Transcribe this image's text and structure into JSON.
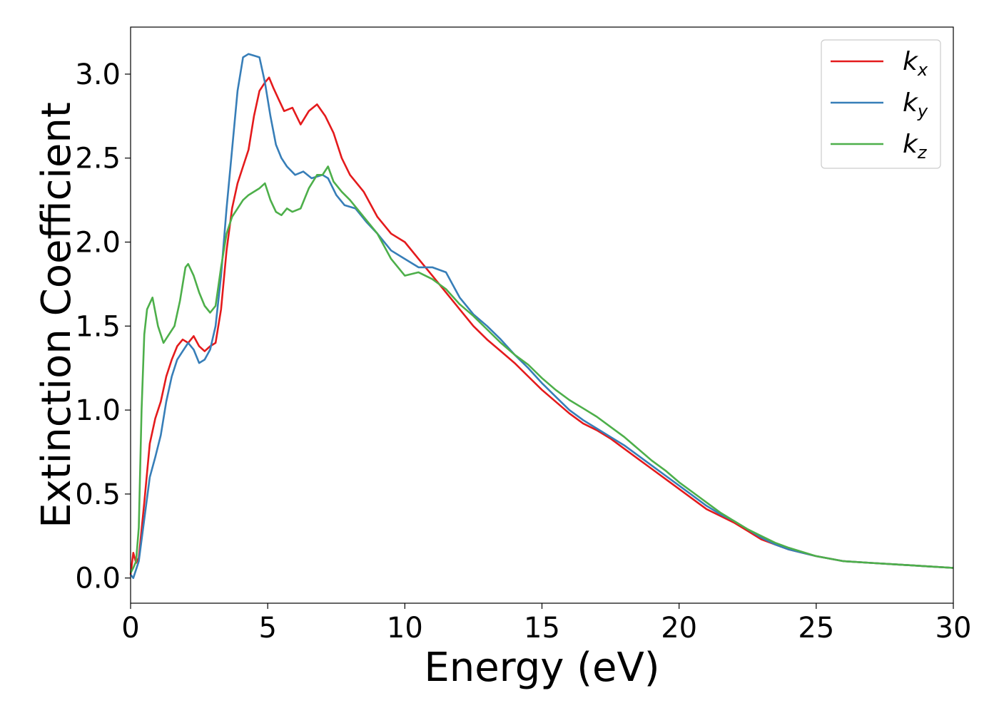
{
  "chart_data": {
    "type": "line",
    "xlabel": "Energy (eV)",
    "ylabel": "Extinction Coefficient",
    "xlim": [
      0,
      30
    ],
    "ylim": [
      -0.15,
      3.28
    ],
    "xticks": [
      0,
      5,
      10,
      15,
      20,
      25,
      30
    ],
    "xtick_labels": [
      "0",
      "5",
      "10",
      "15",
      "20",
      "25",
      "30"
    ],
    "yticks": [
      0.0,
      0.5,
      1.0,
      1.5,
      2.0,
      2.5,
      3.0
    ],
    "ytick_labels": [
      "0.0",
      "0.5",
      "1.0",
      "1.5",
      "2.0",
      "2.5",
      "3.0"
    ],
    "grid": false,
    "legend_position": "top-right",
    "series": [
      {
        "name": "k_x",
        "legend_base": "k",
        "legend_sub": "x",
        "color": "#e41a1c",
        "x": [
          0,
          0.1,
          0.2,
          0.3,
          0.5,
          0.7,
          0.9,
          1.1,
          1.3,
          1.5,
          1.7,
          1.9,
          2.1,
          2.3,
          2.5,
          2.7,
          2.9,
          3.1,
          3.3,
          3.5,
          3.7,
          3.9,
          4.1,
          4.3,
          4.5,
          4.7,
          4.9,
          5.05,
          5.2,
          5.4,
          5.6,
          5.9,
          6.2,
          6.5,
          6.8,
          7.1,
          7.4,
          7.7,
          8.0,
          8.5,
          9.0,
          9.5,
          10.0,
          10.5,
          11.0,
          11.5,
          12.0,
          12.5,
          13.0,
          13.5,
          14.0,
          14.5,
          15.0,
          15.5,
          16.0,
          16.5,
          17.0,
          17.5,
          18.0,
          18.5,
          19.0,
          19.5,
          20.0,
          20.5,
          21.0,
          21.5,
          22.0,
          22.5,
          23.0,
          23.5,
          24.0,
          25.0,
          26.0,
          27.0,
          28.0,
          29.0,
          30.0
        ],
        "y": [
          0.02,
          0.15,
          0.09,
          0.12,
          0.45,
          0.8,
          0.95,
          1.05,
          1.2,
          1.3,
          1.38,
          1.42,
          1.4,
          1.44,
          1.38,
          1.35,
          1.38,
          1.4,
          1.6,
          1.95,
          2.2,
          2.35,
          2.45,
          2.55,
          2.75,
          2.9,
          2.95,
          2.98,
          2.92,
          2.85,
          2.78,
          2.8,
          2.7,
          2.78,
          2.82,
          2.75,
          2.65,
          2.5,
          2.4,
          2.3,
          2.15,
          2.05,
          2.0,
          1.9,
          1.8,
          1.7,
          1.6,
          1.5,
          1.42,
          1.35,
          1.28,
          1.2,
          1.12,
          1.05,
          0.98,
          0.92,
          0.88,
          0.83,
          0.77,
          0.71,
          0.65,
          0.59,
          0.53,
          0.47,
          0.41,
          0.37,
          0.33,
          0.28,
          0.23,
          0.2,
          0.17,
          0.13,
          0.1,
          0.09,
          0.08,
          0.07,
          0.06
        ]
      },
      {
        "name": "k_y",
        "legend_base": "k",
        "legend_sub": "y",
        "color": "#377eb8",
        "x": [
          0,
          0.1,
          0.2,
          0.3,
          0.5,
          0.7,
          0.9,
          1.1,
          1.3,
          1.5,
          1.7,
          1.9,
          2.1,
          2.3,
          2.5,
          2.7,
          2.9,
          3.1,
          3.3,
          3.5,
          3.7,
          3.9,
          4.1,
          4.3,
          4.5,
          4.7,
          4.9,
          5.1,
          5.3,
          5.5,
          5.7,
          6.0,
          6.3,
          6.6,
          7.0,
          7.2,
          7.5,
          7.8,
          8.2,
          8.6,
          9.0,
          9.5,
          10.0,
          10.5,
          11.0,
          11.5,
          12.0,
          12.5,
          13.0,
          13.5,
          14.0,
          14.5,
          15.0,
          15.5,
          16.0,
          16.5,
          17.0,
          17.5,
          18.0,
          18.5,
          19.0,
          19.5,
          20.0,
          20.5,
          21.0,
          21.5,
          22.0,
          22.5,
          23.0,
          23.5,
          24.0,
          25.0,
          26.0,
          27.0,
          28.0,
          29.0,
          30.0
        ],
        "y": [
          0.02,
          0.0,
          0.05,
          0.1,
          0.35,
          0.6,
          0.72,
          0.85,
          1.05,
          1.2,
          1.3,
          1.35,
          1.4,
          1.36,
          1.28,
          1.3,
          1.36,
          1.5,
          1.8,
          2.2,
          2.55,
          2.9,
          3.1,
          3.12,
          3.11,
          3.1,
          2.95,
          2.75,
          2.58,
          2.5,
          2.45,
          2.4,
          2.42,
          2.38,
          2.4,
          2.38,
          2.28,
          2.22,
          2.2,
          2.12,
          2.05,
          1.95,
          1.9,
          1.85,
          1.85,
          1.82,
          1.67,
          1.57,
          1.5,
          1.42,
          1.33,
          1.25,
          1.16,
          1.08,
          1.0,
          0.94,
          0.89,
          0.84,
          0.79,
          0.73,
          0.67,
          0.61,
          0.55,
          0.49,
          0.43,
          0.38,
          0.34,
          0.29,
          0.24,
          0.2,
          0.17,
          0.13,
          0.1,
          0.09,
          0.08,
          0.07,
          0.06
        ]
      },
      {
        "name": "k_z",
        "legend_base": "k",
        "legend_sub": "z",
        "color": "#4daf4a",
        "x": [
          0,
          0.1,
          0.2,
          0.3,
          0.4,
          0.5,
          0.6,
          0.8,
          1.0,
          1.2,
          1.4,
          1.6,
          1.8,
          2.0,
          2.1,
          2.3,
          2.5,
          2.7,
          2.9,
          3.1,
          3.3,
          3.5,
          3.7,
          3.9,
          4.1,
          4.3,
          4.5,
          4.7,
          4.9,
          5.1,
          5.3,
          5.5,
          5.7,
          5.9,
          6.2,
          6.5,
          6.8,
          7.0,
          7.2,
          7.4,
          7.7,
          8.0,
          8.5,
          9.0,
          9.5,
          10.0,
          10.5,
          11.0,
          11.5,
          12.0,
          12.5,
          13.0,
          13.5,
          14.0,
          14.5,
          15.0,
          15.5,
          16.0,
          16.5,
          17.0,
          17.5,
          18.0,
          18.5,
          19.0,
          19.5,
          20.0,
          20.5,
          21.0,
          21.5,
          22.0,
          22.5,
          23.0,
          23.5,
          24.0,
          25.0,
          26.0,
          27.0,
          28.0,
          29.0,
          30.0
        ],
        "y": [
          0.03,
          0.06,
          0.1,
          0.3,
          1.0,
          1.45,
          1.6,
          1.67,
          1.5,
          1.4,
          1.45,
          1.5,
          1.65,
          1.85,
          1.87,
          1.8,
          1.7,
          1.62,
          1.58,
          1.62,
          1.85,
          2.05,
          2.15,
          2.2,
          2.25,
          2.28,
          2.3,
          2.32,
          2.35,
          2.25,
          2.18,
          2.16,
          2.2,
          2.18,
          2.2,
          2.32,
          2.4,
          2.4,
          2.45,
          2.36,
          2.3,
          2.25,
          2.15,
          2.05,
          1.9,
          1.8,
          1.82,
          1.78,
          1.72,
          1.63,
          1.56,
          1.48,
          1.4,
          1.33,
          1.27,
          1.19,
          1.12,
          1.06,
          1.01,
          0.96,
          0.9,
          0.84,
          0.77,
          0.7,
          0.64,
          0.57,
          0.51,
          0.45,
          0.39,
          0.34,
          0.29,
          0.25,
          0.21,
          0.18,
          0.13,
          0.1,
          0.09,
          0.08,
          0.07,
          0.06
        ]
      }
    ]
  }
}
